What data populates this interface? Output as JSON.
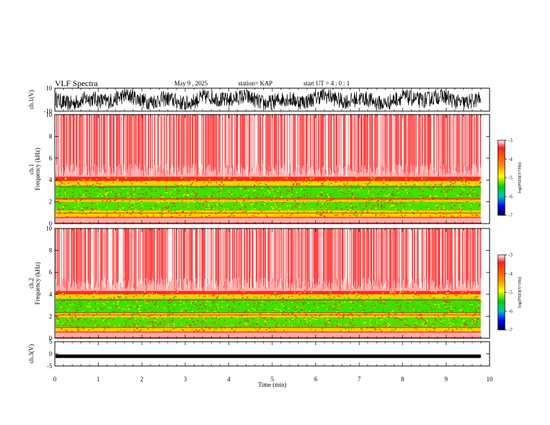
{
  "header": {
    "title": "VLF Spectra",
    "date": "May 9  , 2025",
    "station": "station= KAP",
    "start_ut": "start  UT  =   4 : 0  : 1"
  },
  "colors": {
    "background": "#ffffff",
    "axes": "#000000",
    "waveform": "#000000",
    "spectrogram_high": "#ff1a1a",
    "spectrogram_mid": "#ffff00",
    "spectrogram_low": "#00e000"
  },
  "chart_data": [
    {
      "type": "line",
      "panel": "ch1-waveform",
      "ylabel": "ch.1(V)",
      "ylim": [
        -10,
        10
      ],
      "yticks": [
        "10",
        "-10"
      ],
      "xlim": [
        0,
        10
      ],
      "x_end": 9.8,
      "series": [
        {
          "values": "dense noisy waveform oscillating between about -8 and +8 V"
        }
      ]
    },
    {
      "type": "heatmap",
      "panel": "ch1-spectrogram",
      "ylabel": "ch.1\nFrequency  (kHz)",
      "ylim": [
        0,
        10
      ],
      "yticks": [
        "0",
        "2",
        "4",
        "6",
        "8",
        "10"
      ],
      "xlim": [
        0,
        10
      ],
      "x_end": 9.8,
      "bands_khz": {
        "red_top": 10,
        "red_dense_below": 4.3,
        "green_upper": [
          2.3,
          3.5
        ],
        "green_lower": [
          1.2,
          2.0
        ],
        "yellow_floor": 0.6,
        "bottom_stripes": [
          0.1,
          0.5
        ]
      },
      "colorbar": {
        "label": "log(PSD)(V²/Hz)",
        "ticks": [
          "-3",
          "-4",
          "-5",
          "-6",
          "-7"
        ],
        "range": [
          -7,
          -3
        ]
      }
    },
    {
      "type": "heatmap",
      "panel": "ch2-spectrogram",
      "ylabel": "ch.2\nFrequency  (kHz)",
      "ylim": [
        0,
        10
      ],
      "yticks": [
        "0",
        "2",
        "4",
        "6",
        "8",
        "10"
      ],
      "xlim": [
        0,
        10
      ],
      "x_end": 9.8,
      "bands_khz": {
        "red_top": 10,
        "red_dense_below": 4.3,
        "green_upper": [
          2.3,
          3.6
        ],
        "green_lower": [
          1.0,
          1.9
        ],
        "yellow_floor": 0.6,
        "bottom_stripes": [
          0.1,
          0.5
        ]
      },
      "colorbar": {
        "label": "log(PSD)(V²/Hz)",
        "ticks": [
          "-3",
          "-4",
          "-5",
          "-6",
          "-7"
        ],
        "range": [
          -7,
          -3
        ]
      }
    },
    {
      "type": "line",
      "panel": "ch3-waveform",
      "ylabel": "ch.3(V)",
      "ylim": [
        -5,
        5
      ],
      "yticks": [
        "5",
        "0",
        "-5"
      ],
      "xlim": [
        0,
        10
      ],
      "x_end": 9.8,
      "series": [
        {
          "values": "thick nearly flat trace around -1 V"
        }
      ],
      "xlabel": "Time  (min)",
      "xticks": [
        "0",
        "1",
        "2",
        "3",
        "4",
        "5",
        "6",
        "7",
        "8",
        "9",
        "10"
      ]
    }
  ]
}
